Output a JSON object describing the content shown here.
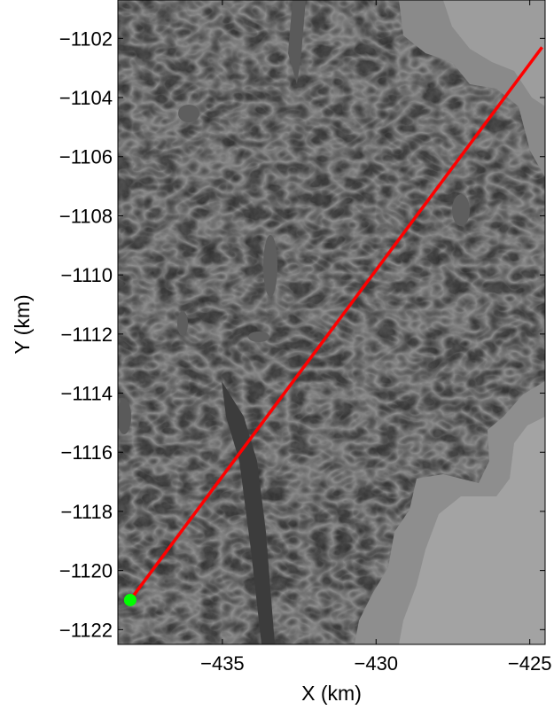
{
  "chart_data": {
    "type": "scatter",
    "title": "",
    "xlabel": "X (km)",
    "ylabel": "Y (km)",
    "xlim": [
      -438.4,
      -424.5
    ],
    "ylim": [
      -1122.5,
      -1100.7
    ],
    "x_ticks": [
      -435,
      -430,
      -425
    ],
    "x_tick_labels": [
      "−435",
      "−430",
      "−425"
    ],
    "y_ticks": [
      -1102,
      -1104,
      -1106,
      -1108,
      -1110,
      -1112,
      -1114,
      -1116,
      -1118,
      -1120,
      -1122
    ],
    "y_tick_labels": [
      "−1102",
      "−1104",
      "−1106",
      "−1108",
      "−1110",
      "−1112",
      "−1114",
      "−1116",
      "−1118",
      "−1120",
      "−1122"
    ],
    "grid": false,
    "background": "grayscale satellite image",
    "series": [
      {
        "kind": "line",
        "color": "#ff0000",
        "x": [
          -438.0,
          -424.6
        ],
        "y": [
          -1121.0,
          -1102.3
        ]
      },
      {
        "kind": "point",
        "color": "#00ff00",
        "x": [
          -438.0
        ],
        "y": [
          -1121.0
        ]
      }
    ]
  }
}
